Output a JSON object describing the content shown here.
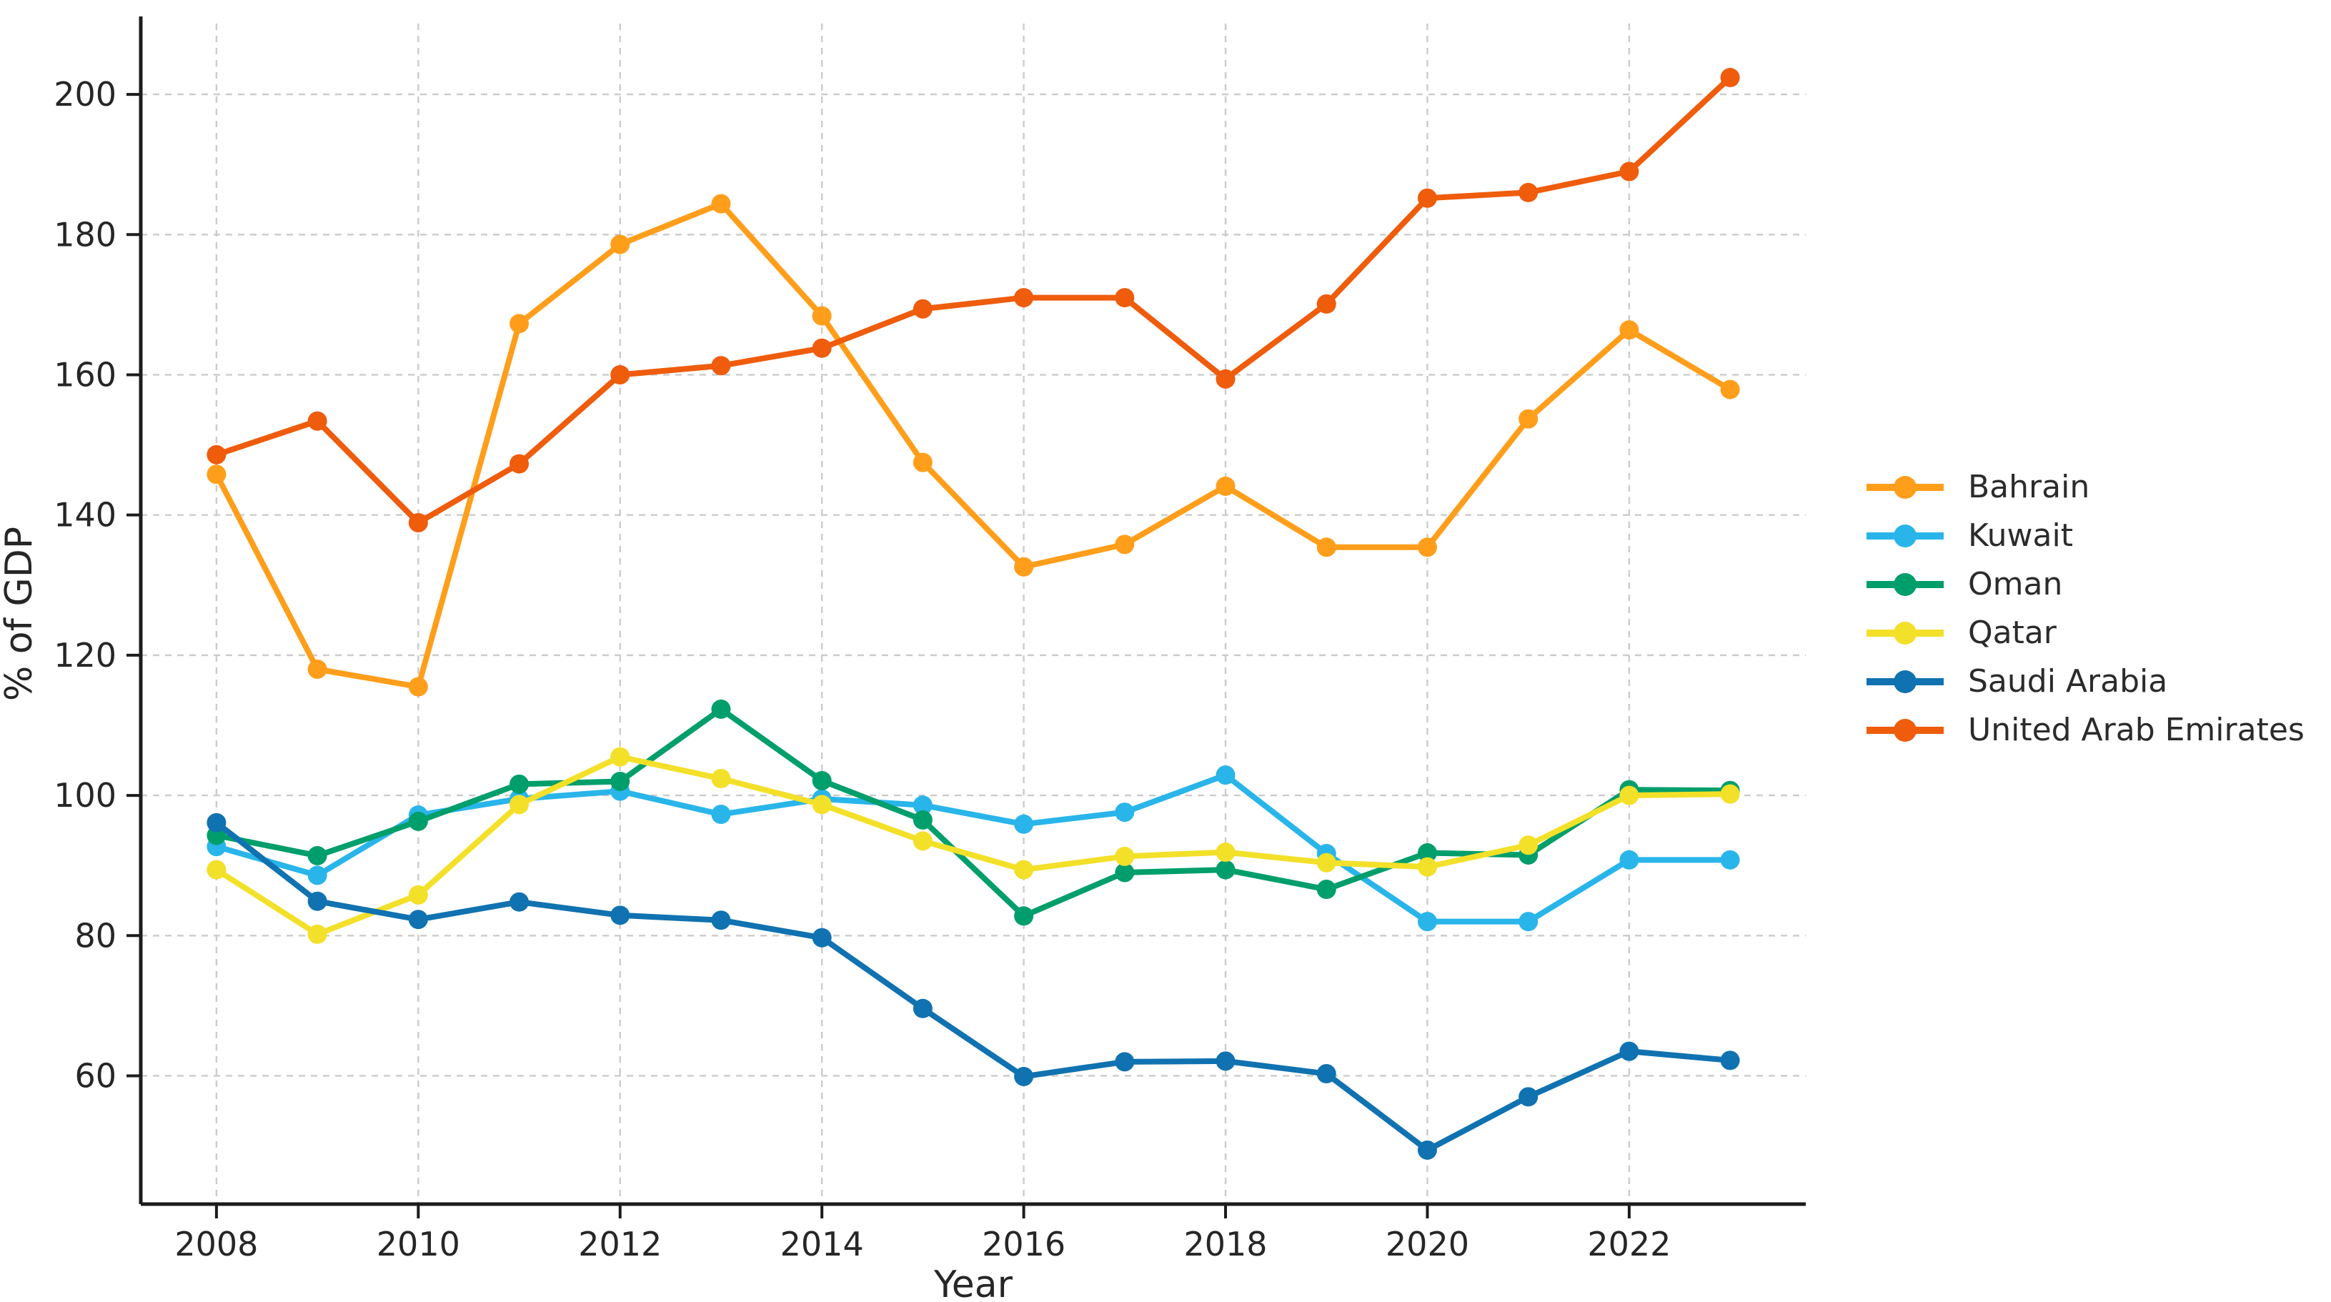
{
  "chart_data": {
    "type": "line",
    "title": "",
    "xlabel": "Year",
    "ylabel": "% of GDP",
    "x": [
      2008,
      2009,
      2010,
      2011,
      2012,
      2013,
      2014,
      2015,
      2016,
      2017,
      2018,
      2019,
      2020,
      2021,
      2022,
      2023
    ],
    "xticks": [
      2008,
      2010,
      2012,
      2014,
      2016,
      2018,
      2020,
      2022
    ],
    "yticks": [
      60,
      80,
      100,
      120,
      140,
      160,
      180,
      200
    ],
    "xlim": [
      2007.25,
      2023.75
    ],
    "ylim": [
      41.7,
      210.1
    ],
    "grid": true,
    "legend_position": "right-outside",
    "series": [
      {
        "name": "Bahrain",
        "color": "#FF9E1B",
        "values": [
          145.8,
          118.0,
          115.5,
          167.3,
          178.6,
          184.4,
          168.4,
          147.5,
          132.6,
          135.8,
          144.1,
          135.4,
          135.4,
          153.7,
          166.4,
          157.9
        ]
      },
      {
        "name": "Kuwait",
        "color": "#29B5EA",
        "values": [
          92.7,
          88.6,
          97.2,
          99.5,
          100.6,
          97.3,
          99.5,
          98.6,
          95.9,
          97.6,
          102.9,
          91.7,
          82.0,
          82.0,
          90.8,
          90.8
        ]
      },
      {
        "name": "Oman",
        "color": "#009E6B",
        "values": [
          94.3,
          91.4,
          96.3,
          101.6,
          102.0,
          112.3,
          102.1,
          96.5,
          82.8,
          89.0,
          89.4,
          86.6,
          91.8,
          91.5,
          100.8,
          100.7
        ]
      },
      {
        "name": "Qatar",
        "color": "#F3E029",
        "values": [
          89.4,
          80.2,
          85.8,
          98.7,
          105.5,
          102.4,
          98.7,
          93.5,
          89.4,
          91.3,
          91.9,
          90.4,
          89.8,
          92.9,
          100.0,
          100.2
        ]
      },
      {
        "name": "Saudi Arabia",
        "color": "#1072B0",
        "values": [
          96.1,
          84.9,
          82.3,
          84.8,
          82.9,
          82.2,
          79.7,
          69.6,
          59.9,
          62.0,
          62.1,
          60.3,
          49.4,
          57.0,
          63.5,
          62.2
        ]
      },
      {
        "name": "United Arab Emirates",
        "color": "#EE5C0C",
        "values": [
          148.6,
          153.4,
          138.9,
          147.3,
          160.0,
          161.3,
          163.8,
          169.4,
          171.0,
          171.0,
          159.4,
          170.1,
          185.2,
          186.0,
          189.0,
          202.4
        ]
      }
    ],
    "style": {
      "grid_color": "#cbcbcb",
      "spine_color": "#1c1c1c",
      "text_color": "#262626",
      "background": "#ffffff"
    }
  }
}
